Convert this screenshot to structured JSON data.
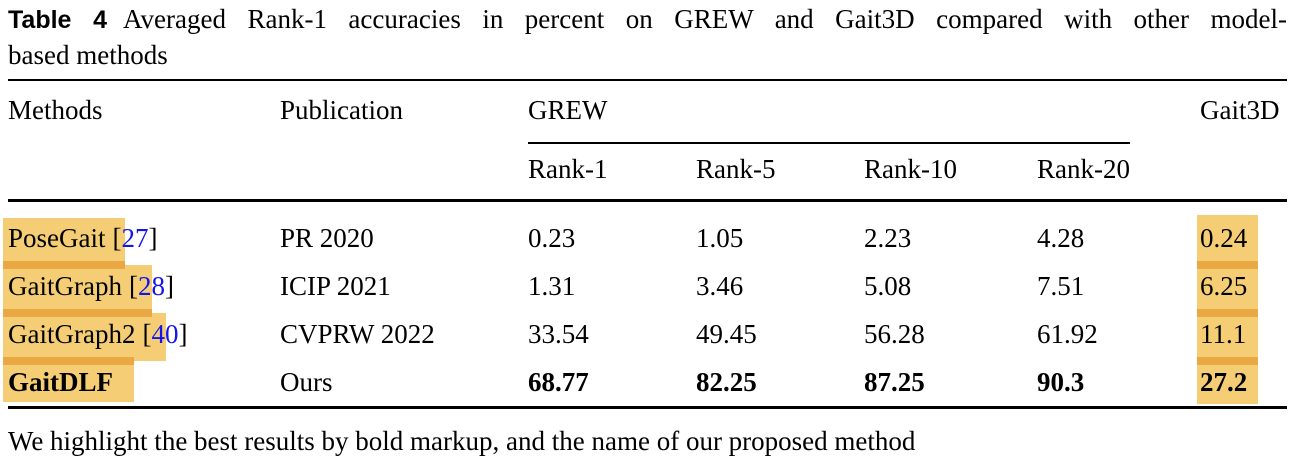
{
  "caption": {
    "label": "Table 4",
    "line1": "Averaged Rank-1 accuracies in percent on GREW and Gait3D compared with other model-",
    "line2": "based methods"
  },
  "table": {
    "headers": {
      "methods": "Methods",
      "publication": "Publication",
      "grew": "GREW",
      "gait3d": "Gait3D",
      "grew_sub": [
        "Rank-1",
        "Rank-5",
        "Rank-10",
        "Rank-20"
      ]
    },
    "rows": [
      {
        "method": "PoseGait",
        "cite_open": "[",
        "cite_num": "27",
        "cite_close": "]",
        "publication": "PR 2020",
        "rank1": "0.23",
        "rank5": "1.05",
        "rank10": "2.23",
        "rank20": "4.28",
        "gait3d": "0.24"
      },
      {
        "method": "GaitGraph",
        "cite_open": "[",
        "cite_num": "28",
        "cite_close": "]",
        "publication": "ICIP 2021",
        "rank1": "1.31",
        "rank5": "3.46",
        "rank10": "5.08",
        "rank20": "7.51",
        "gait3d": "6.25"
      },
      {
        "method": "GaitGraph2",
        "cite_open": "[",
        "cite_num": "40",
        "cite_close": "]",
        "publication": "CVPRW 2022",
        "rank1": "33.54",
        "rank5": "49.45",
        "rank10": "56.28",
        "rank20": "61.92",
        "gait3d": "11.1"
      },
      {
        "method": "GaitDLF",
        "publication": "Ours",
        "rank1": "68.77",
        "rank5": "82.25",
        "rank10": "87.25",
        "rank20": "90.3",
        "gait3d": "27.2"
      }
    ]
  },
  "footnote": "We highlight the best results by bold markup, and the name of our proposed method",
  "colors": {
    "highlight": "#F4CD74",
    "highlight_overlap": "#E9A843",
    "citation_blue": "#1414EE"
  }
}
